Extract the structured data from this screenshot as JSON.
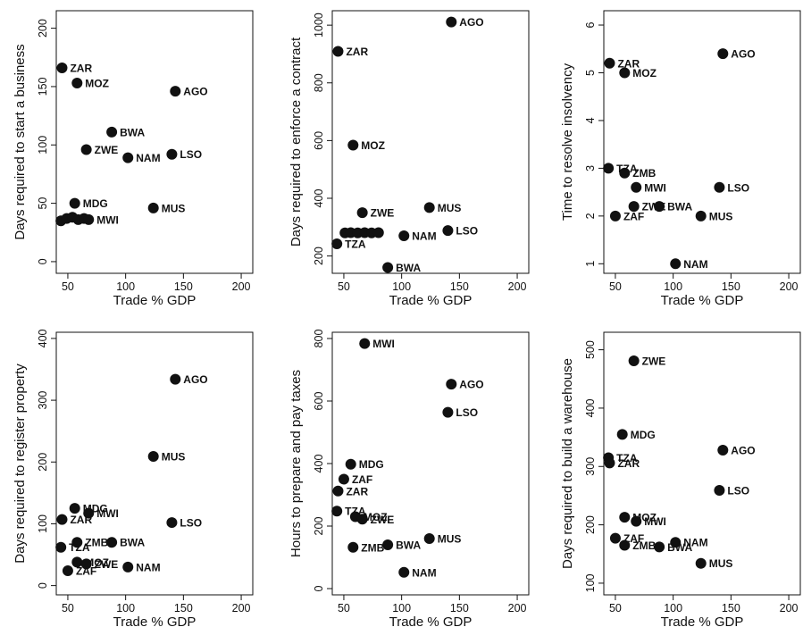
{
  "chart_data": [
    {
      "type": "scatter",
      "xlabel": "Trade % GDP",
      "ylabel": "Days required to start a business",
      "xlim": [
        40,
        210
      ],
      "ylim": [
        -10,
        215
      ],
      "xticks": [
        50,
        100,
        150,
        200
      ],
      "yticks": [
        0,
        50,
        100,
        150,
        200
      ],
      "grid": false,
      "points": [
        {
          "label": "ZAR",
          "x": 45,
          "y": 166
        },
        {
          "label": "MOZ",
          "x": 58,
          "y": 153
        },
        {
          "label": "AGO",
          "x": 143,
          "y": 146
        },
        {
          "label": "BWA",
          "x": 88,
          "y": 111
        },
        {
          "label": "ZWE",
          "x": 66,
          "y": 96
        },
        {
          "label": "NAM",
          "x": 102,
          "y": 89
        },
        {
          "label": "LSO",
          "x": 140,
          "y": 92
        },
        {
          "label": "MDG",
          "x": 56,
          "y": 50
        },
        {
          "label": "MUS",
          "x": 124,
          "y": 46
        },
        {
          "label": "",
          "x": 44,
          "y": 35
        },
        {
          "label": "",
          "x": 49,
          "y": 37
        },
        {
          "label": "",
          "x": 54,
          "y": 38
        },
        {
          "label": "",
          "x": 59,
          "y": 36
        },
        {
          "label": "",
          "x": 64,
          "y": 37
        },
        {
          "label": "MWI",
          "x": 68,
          "y": 36
        }
      ]
    },
    {
      "type": "scatter",
      "xlabel": "Trade % GDP",
      "ylabel": "Days required to enforce a contract",
      "xlim": [
        40,
        210
      ],
      "ylim": [
        140,
        1050
      ],
      "xticks": [
        50,
        100,
        150,
        200
      ],
      "yticks": [
        200,
        400,
        600,
        800,
        1000
      ],
      "grid": false,
      "points": [
        {
          "label": "AGO",
          "x": 143,
          "y": 1011
        },
        {
          "label": "ZAR",
          "x": 45,
          "y": 909
        },
        {
          "label": "MOZ",
          "x": 58,
          "y": 584
        },
        {
          "label": "ZWE",
          "x": 66,
          "y": 350
        },
        {
          "label": "MUS",
          "x": 124,
          "y": 368
        },
        {
          "label": "LSO",
          "x": 140,
          "y": 288
        },
        {
          "label": "NAM",
          "x": 102,
          "y": 270
        },
        {
          "label": "TZA",
          "x": 44,
          "y": 242
        },
        {
          "label": "",
          "x": 51,
          "y": 280
        },
        {
          "label": "",
          "x": 56,
          "y": 281
        },
        {
          "label": "",
          "x": 62,
          "y": 280
        },
        {
          "label": "",
          "x": 68,
          "y": 281
        },
        {
          "label": "",
          "x": 74,
          "y": 280
        },
        {
          "label": "",
          "x": 80,
          "y": 281
        },
        {
          "label": "BWA",
          "x": 88,
          "y": 160
        }
      ]
    },
    {
      "type": "scatter",
      "xlabel": "Trade % GDP",
      "ylabel": "Time to resolve insolvency",
      "xlim": [
        40,
        210
      ],
      "ylim": [
        0.8,
        6.3
      ],
      "xticks": [
        50,
        100,
        150,
        200
      ],
      "yticks": [
        1,
        2,
        3,
        4,
        5,
        6
      ],
      "grid": false,
      "points": [
        {
          "label": "AGO",
          "x": 143,
          "y": 5.4
        },
        {
          "label": "ZAR",
          "x": 45,
          "y": 5.2
        },
        {
          "label": "MOZ",
          "x": 58,
          "y": 5.0
        },
        {
          "label": "TZA",
          "x": 44,
          "y": 3.0
        },
        {
          "label": "ZMB",
          "x": 58,
          "y": 2.9
        },
        {
          "label": "MWI",
          "x": 68,
          "y": 2.6
        },
        {
          "label": "LSO",
          "x": 140,
          "y": 2.6
        },
        {
          "label": "ZWE",
          "x": 66,
          "y": 2.2
        },
        {
          "label": "BWA",
          "x": 88,
          "y": 2.2
        },
        {
          "label": "ZAF",
          "x": 50,
          "y": 2.0
        },
        {
          "label": "MUS",
          "x": 124,
          "y": 2.0
        },
        {
          "label": "NAM",
          "x": 102,
          "y": 1.0
        }
      ]
    },
    {
      "type": "scatter",
      "xlabel": "Trade % GDP",
      "ylabel": "Days required to register property",
      "xlim": [
        40,
        210
      ],
      "ylim": [
        -15,
        410
      ],
      "xticks": [
        50,
        100,
        150,
        200
      ],
      "yticks": [
        0,
        100,
        200,
        300,
        400
      ],
      "grid": false,
      "points": [
        {
          "label": "AGO",
          "x": 143,
          "y": 334
        },
        {
          "label": "MUS",
          "x": 124,
          "y": 209
        },
        {
          "label": "MDG",
          "x": 56,
          "y": 125
        },
        {
          "label": "MWI",
          "x": 68,
          "y": 117
        },
        {
          "label": "ZAR",
          "x": 45,
          "y": 107
        },
        {
          "label": "LSO",
          "x": 140,
          "y": 102
        },
        {
          "label": "ZMB",
          "x": 58,
          "y": 70
        },
        {
          "label": "BWA",
          "x": 88,
          "y": 70
        },
        {
          "label": "TZA",
          "x": 44,
          "y": 62
        },
        {
          "label": "MOZ",
          "x": 58,
          "y": 38
        },
        {
          "label": "ZWE",
          "x": 66,
          "y": 35
        },
        {
          "label": "NAM",
          "x": 102,
          "y": 30
        },
        {
          "label": "ZAF",
          "x": 50,
          "y": 24
        }
      ]
    },
    {
      "type": "scatter",
      "xlabel": "Trade % GDP",
      "ylabel": "Hours to prepare and pay taxes",
      "xlim": [
        40,
        210
      ],
      "ylim": [
        -20,
        820
      ],
      "xticks": [
        50,
        100,
        150,
        200
      ],
      "yticks": [
        0,
        200,
        400,
        600,
        800
      ],
      "grid": false,
      "points": [
        {
          "label": "MWI",
          "x": 68,
          "y": 784
        },
        {
          "label": "AGO",
          "x": 143,
          "y": 654
        },
        {
          "label": "LSO",
          "x": 140,
          "y": 564
        },
        {
          "label": "MDG",
          "x": 56,
          "y": 398
        },
        {
          "label": "ZAF",
          "x": 50,
          "y": 350
        },
        {
          "label": "ZAR",
          "x": 45,
          "y": 312
        },
        {
          "label": "TZA",
          "x": 44,
          "y": 248
        },
        {
          "label": "MOZ",
          "x": 60,
          "y": 230
        },
        {
          "label": "ZWE",
          "x": 66,
          "y": 222
        },
        {
          "label": "MUS",
          "x": 124,
          "y": 160
        },
        {
          "label": "BWA",
          "x": 88,
          "y": 140
        },
        {
          "label": "ZMB",
          "x": 58,
          "y": 132
        },
        {
          "label": "NAM",
          "x": 102,
          "y": 52
        }
      ]
    },
    {
      "type": "scatter",
      "xlabel": "Trade % GDP",
      "ylabel": "Days required to build a warehouse",
      "xlim": [
        40,
        210
      ],
      "ylim": [
        80,
        530
      ],
      "xticks": [
        50,
        100,
        150,
        200
      ],
      "yticks": [
        100,
        200,
        300,
        400,
        500
      ],
      "grid": false,
      "points": [
        {
          "label": "ZWE",
          "x": 66,
          "y": 481
        },
        {
          "label": "MDG",
          "x": 56,
          "y": 355
        },
        {
          "label": "AGO",
          "x": 143,
          "y": 328
        },
        {
          "label": "TZA",
          "x": 44,
          "y": 315
        },
        {
          "label": "ZAR",
          "x": 45,
          "y": 306
        },
        {
          "label": "LSO",
          "x": 140,
          "y": 259
        },
        {
          "label": "MOZ",
          "x": 58,
          "y": 213
        },
        {
          "label": "MWI",
          "x": 68,
          "y": 206
        },
        {
          "label": "ZAF",
          "x": 50,
          "y": 177
        },
        {
          "label": "NAM",
          "x": 102,
          "y": 170
        },
        {
          "label": "ZMB",
          "x": 58,
          "y": 165
        },
        {
          "label": "BWA",
          "x": 88,
          "y": 162
        },
        {
          "label": "MUS",
          "x": 124,
          "y": 134
        }
      ]
    }
  ]
}
